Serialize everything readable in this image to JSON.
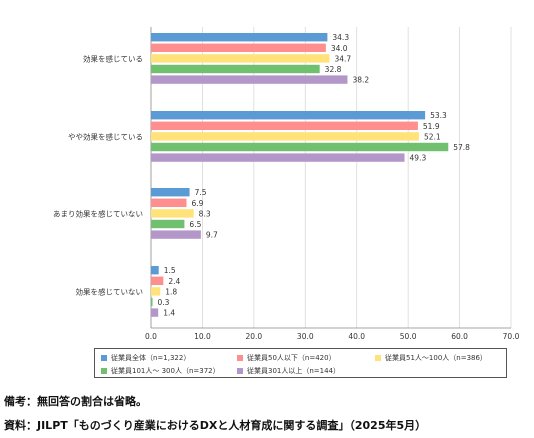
{
  "chart_data": {
    "type": "bar",
    "orientation": "horizontal",
    "categories": [
      "効果を感じている",
      "やや効果を感じている",
      "あまり効果を感じていない",
      "効果を感じていない"
    ],
    "series": [
      {
        "name": "従業員全体（n=1,322）",
        "color": "#5b9bd5",
        "values": [
          34.3,
          53.3,
          7.5,
          1.5
        ]
      },
      {
        "name": "従業員50人以下（n=420）",
        "color": "#ff8f8f",
        "values": [
          34.0,
          51.9,
          6.9,
          2.4
        ]
      },
      {
        "name": "従業員51人～100人（n=386）",
        "color": "#ffe37a",
        "values": [
          34.7,
          52.1,
          8.3,
          1.8
        ]
      },
      {
        "name": "従業員101人～ 300人（n=372）",
        "color": "#70c070",
        "values": [
          32.8,
          57.8,
          6.5,
          0.3
        ]
      },
      {
        "name": "従業員301人以上（n=144）",
        "color": "#b497c9",
        "values": [
          38.2,
          49.3,
          9.7,
          1.4
        ]
      }
    ],
    "xlim": [
      0,
      70
    ],
    "xticks": [
      "0.0",
      "10.0",
      "20.0",
      "30.0",
      "40.0",
      "50.0",
      "60.0",
      "70.0"
    ],
    "xunit": "(%)",
    "grid": true,
    "legend_position": "bottom"
  },
  "notes": {
    "remark": "備考：無回答の割合は省略。",
    "source": "資料：JILPT「ものづくり産業におけるDXと人材育成に関する調査」（2025年5月）"
  }
}
